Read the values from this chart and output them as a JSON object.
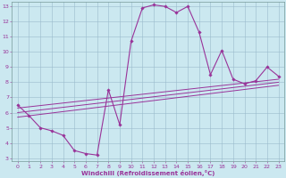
{
  "xlabel": "Windchill (Refroidissement éolien,°C)",
  "bg_color": "#cbe8f0",
  "line_color": "#993399",
  "grid_color": "#99bbcc",
  "hours": [
    0,
    1,
    2,
    3,
    4,
    5,
    6,
    7,
    8,
    9,
    10,
    11,
    12,
    13,
    14,
    15,
    16,
    17,
    18,
    19,
    20,
    21,
    22,
    23
  ],
  "main_values": [
    6.5,
    5.8,
    5.0,
    4.8,
    4.5,
    3.5,
    3.3,
    3.2,
    7.5,
    5.2,
    10.7,
    12.9,
    13.1,
    13.0,
    12.6,
    13.0,
    11.3,
    8.5,
    10.1,
    8.2,
    7.9,
    8.1,
    9.0,
    8.4
  ],
  "line1_x": [
    0,
    23
  ],
  "line1_y": [
    6.3,
    8.2
  ],
  "line2_x": [
    0,
    23
  ],
  "line2_y": [
    6.0,
    8.0
  ],
  "line3_x": [
    0,
    23
  ],
  "line3_y": [
    5.7,
    7.8
  ],
  "ylim_min": 3,
  "ylim_max": 13,
  "xlim_min": 0,
  "xlim_max": 23,
  "yticks": [
    3,
    4,
    5,
    6,
    7,
    8,
    9,
    10,
    11,
    12,
    13
  ],
  "xticks": [
    0,
    1,
    2,
    3,
    4,
    5,
    6,
    7,
    8,
    9,
    10,
    11,
    12,
    13,
    14,
    15,
    16,
    17,
    18,
    19,
    20,
    21,
    22,
    23
  ],
  "tick_fontsize": 4.5,
  "xlabel_fontsize": 5.0,
  "xlabel_fontweight": "bold"
}
